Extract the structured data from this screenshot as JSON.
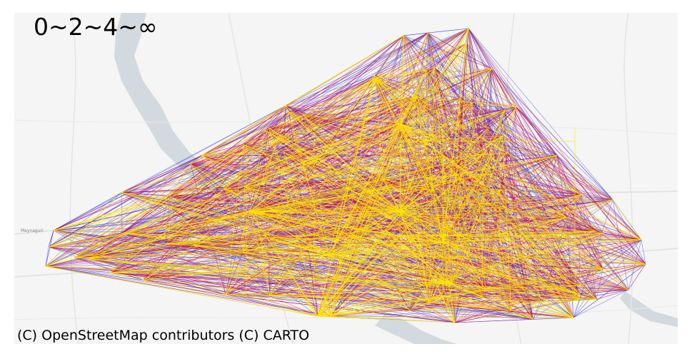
{
  "map": {
    "legend_text": "0~2~4~∞",
    "attribution": "(C) OpenStreetMap contributors (C) CARTO",
    "place_label": "Maynaguri",
    "basemap": "carto-light",
    "colors": {
      "background": "#f4f5f4",
      "water": "#d3dadf",
      "roads": "#e3e5e3",
      "band_0_2": "#3b2fd0",
      "band_2_4": "#d40f4b",
      "band_4_inf": "#ffe600"
    },
    "color_bands": [
      {
        "range": "0~2",
        "color": "#3b2fd0"
      },
      {
        "range": "2~4",
        "color": "#d40f4b"
      },
      {
        "range": "4~∞",
        "color": "#ffe600"
      }
    ]
  }
}
